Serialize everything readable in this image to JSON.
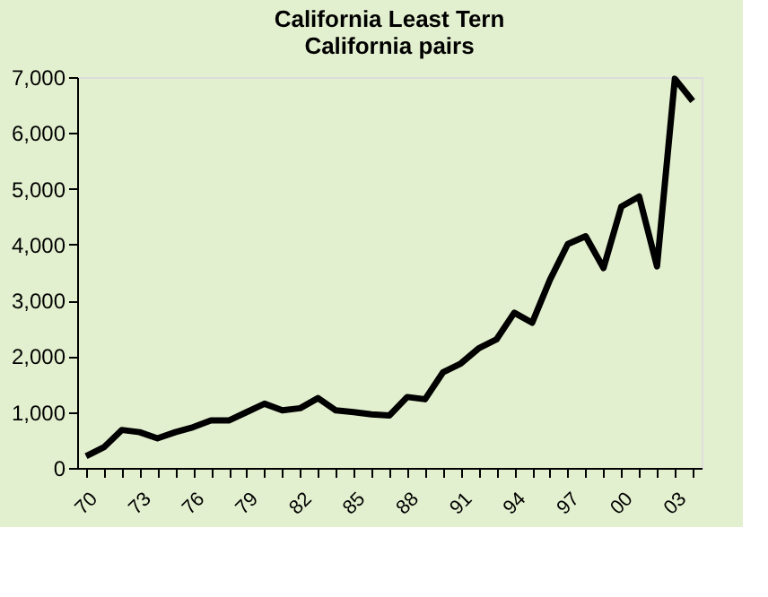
{
  "chart_data": {
    "type": "line",
    "title": [
      "California Least Tern",
      "California pairs"
    ],
    "categories": [
      "70",
      null,
      null,
      "73",
      null,
      null,
      "76",
      null,
      null,
      "79",
      null,
      null,
      "82",
      null,
      null,
      "85",
      null,
      null,
      "88",
      null,
      null,
      "91",
      null,
      null,
      "94",
      null,
      null,
      "97",
      null,
      null,
      "00",
      null,
      null,
      "03",
      null
    ],
    "series": [
      {
        "color": "#000000",
        "values": [
          210,
          370,
          680,
          640,
          530,
          640,
          730,
          850,
          850,
          1000,
          1150,
          1030,
          1070,
          1250,
          1030,
          1000,
          960,
          940,
          1270,
          1230,
          1710,
          1870,
          2140,
          2300,
          2780,
          2600,
          3370,
          4010,
          4150,
          3580,
          4680,
          4860,
          3610,
          6970,
          6570
        ]
      }
    ],
    "ylim": [
      0,
      7000
    ],
    "yticks": [
      0,
      {
        "value": 1000,
        "label": "1,000"
      },
      {
        "value": 2000,
        "label": "2,000"
      },
      {
        "value": 3000,
        "label": "3,000"
      },
      {
        "value": 4000,
        "label": "4,000"
      },
      {
        "value": 5000,
        "label": "5,000"
      },
      {
        "value": 6000,
        "label": "6,000"
      },
      {
        "value": 7000,
        "label": "7,000"
      }
    ],
    "grid": false,
    "marker": "none",
    "line_style": "solid"
  }
}
